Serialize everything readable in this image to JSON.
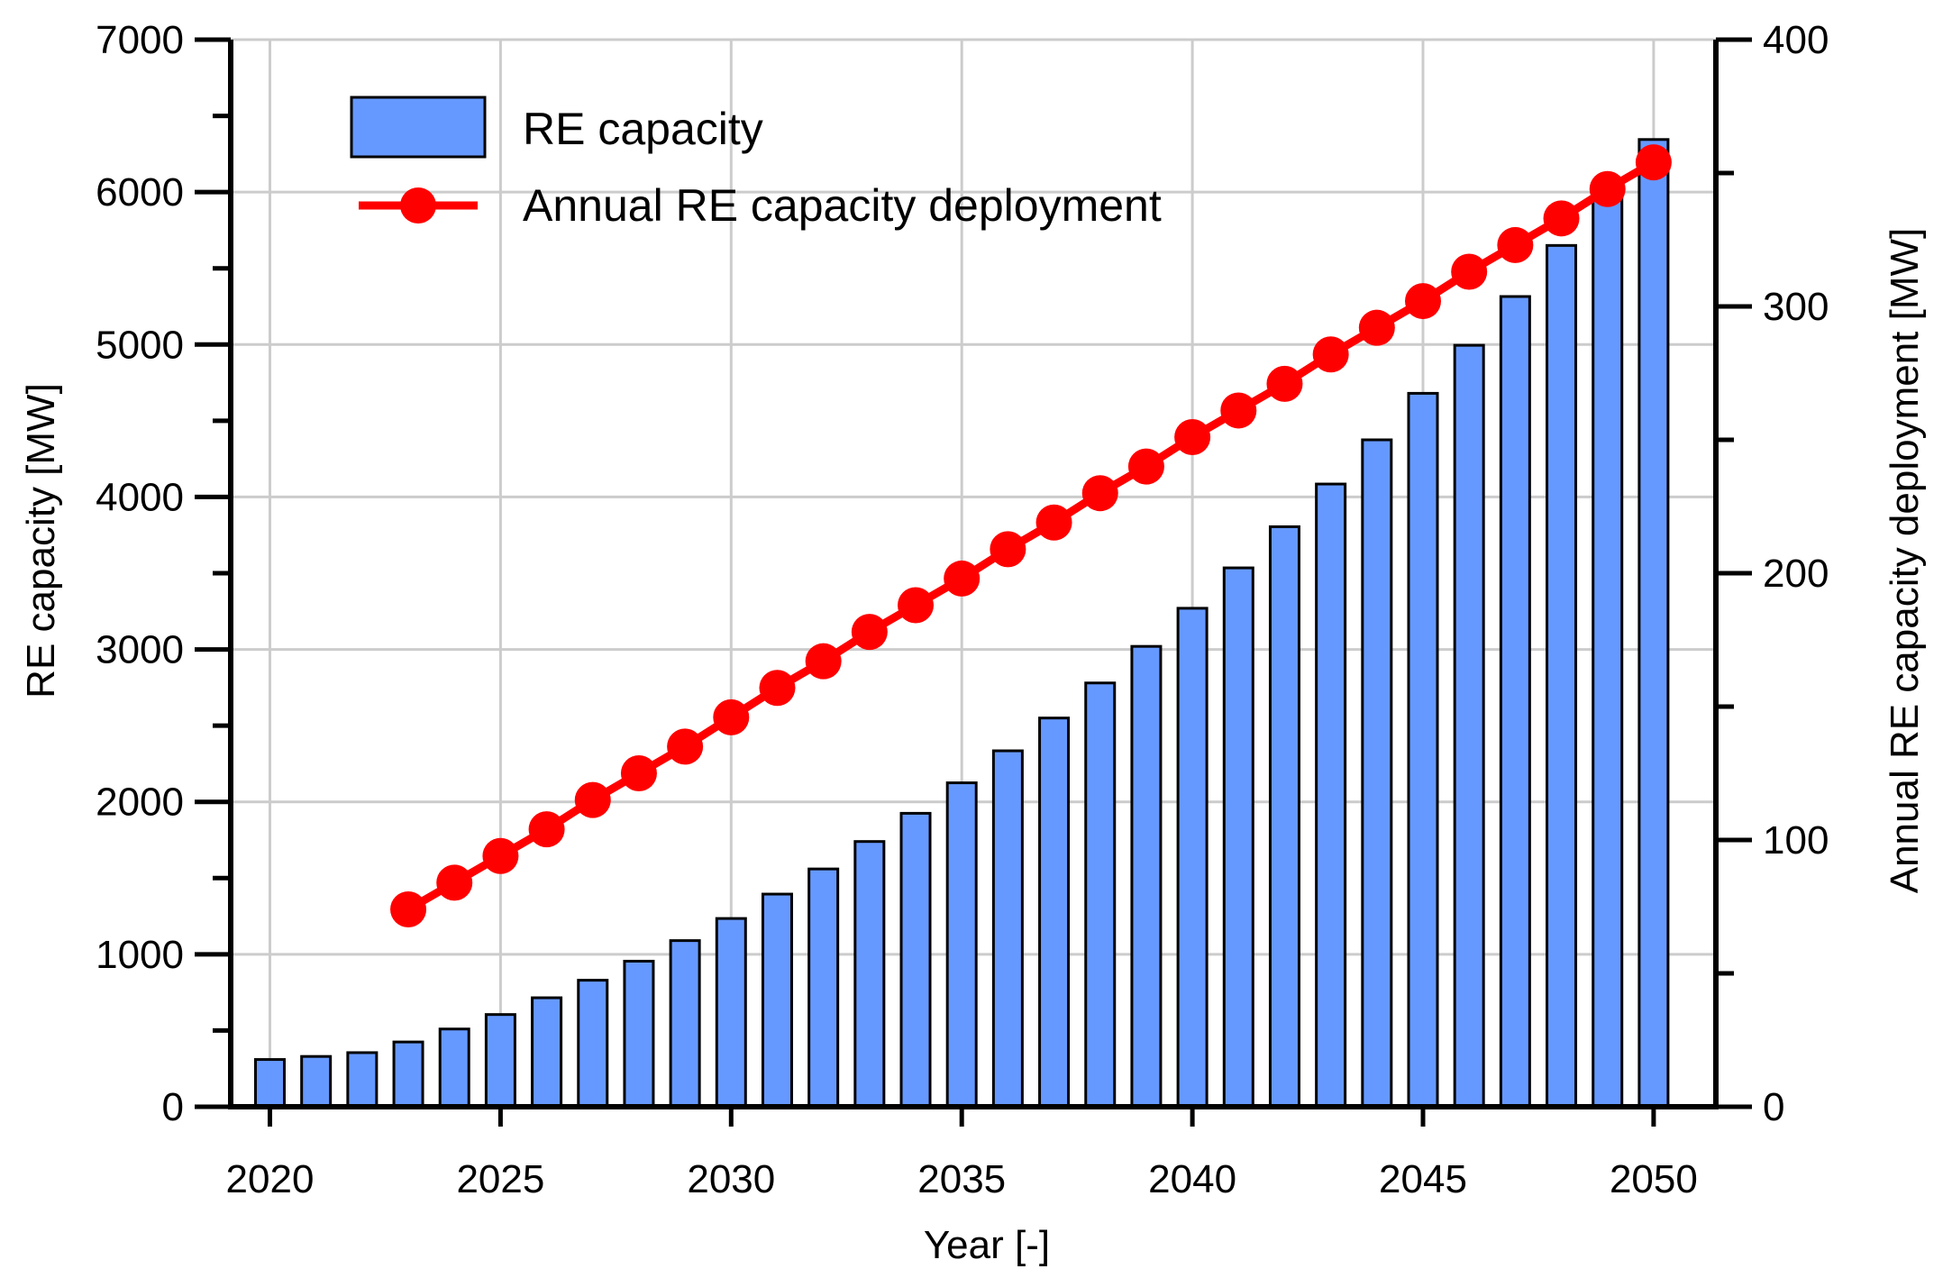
{
  "chart_data": {
    "type": "bar+line",
    "xlabel": "Year  [-]",
    "ylabel_left": "RE capacity [MW]",
    "ylabel_right": "Annual RE capacity deployment  [MW]",
    "x_ticks": [
      2020,
      2025,
      2030,
      2035,
      2040,
      2045,
      2050
    ],
    "ylim_left": [
      0,
      7000
    ],
    "yticks_left": [
      0,
      1000,
      2000,
      3000,
      4000,
      5000,
      6000,
      7000
    ],
    "ylim_right": [
      0,
      400
    ],
    "yticks_right": [
      0,
      100,
      200,
      300,
      400
    ],
    "grid": true,
    "legend_position": "top-left",
    "series": [
      {
        "name": "RE capacity",
        "kind": "bar",
        "axis": "left",
        "color": "#6699FF",
        "x": [
          2020,
          2021,
          2022,
          2023,
          2024,
          2025,
          2026,
          2027,
          2028,
          2029,
          2030,
          2031,
          2032,
          2033,
          2034,
          2035,
          2036,
          2037,
          2038,
          2039,
          2040,
          2041,
          2042,
          2043,
          2044,
          2045,
          2046,
          2047,
          2048,
          2049,
          2050
        ],
        "values": [
          310,
          330,
          355,
          425,
          510,
          605,
          715,
          830,
          955,
          1090,
          1235,
          1395,
          1560,
          1740,
          1925,
          2125,
          2335,
          2550,
          2780,
          3020,
          3270,
          3535,
          3805,
          4085,
          4375,
          4680,
          4995,
          5315,
          5650,
          5995,
          6345
        ]
      },
      {
        "name": "Annual RE capacity deployment",
        "kind": "line",
        "axis": "right",
        "color": "#FF0000",
        "x": [
          2023,
          2024,
          2025,
          2026,
          2027,
          2028,
          2029,
          2030,
          2031,
          2032,
          2033,
          2034,
          2035,
          2036,
          2037,
          2038,
          2039,
          2040,
          2041,
          2042,
          2043,
          2044,
          2045,
          2046,
          2047,
          2048,
          2049,
          2050
        ],
        "values": [
          74,
          84,
          94,
          104,
          115,
          125,
          135,
          146,
          157,
          167,
          178,
          188,
          198,
          209,
          219,
          230,
          240,
          251,
          261,
          271,
          282,
          292,
          302,
          313,
          323,
          333,
          344,
          354
        ]
      }
    ]
  }
}
